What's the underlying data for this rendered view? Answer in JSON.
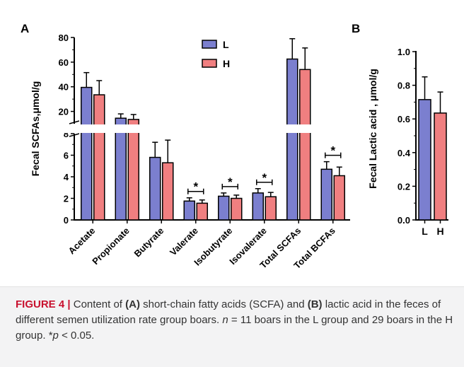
{
  "figure": {
    "panel_a_letter": "A",
    "panel_b_letter": "B",
    "caption": {
      "label": "FIGURE 4",
      "separator": "|",
      "t1": "Content of",
      "a_ref": "(A)",
      "t2": "short-chain fatty acids (SCFA) and",
      "b_ref": "(B)",
      "t3": "lactic acid in the feces of different semen utilization rate group boars.",
      "n_sym": "n",
      "t4": "= 11 boars in the L group and 29 boars in the H group. *",
      "p_sym": "p",
      "t5": "< 0.05."
    }
  },
  "chart_data": [
    {
      "type": "bar",
      "panel": "A",
      "ylabel": "Fecal SCFAs,μmol/g",
      "categories": [
        "Acetate",
        "Propionate",
        "Butyrate",
        "Valerate",
        "Isobutyrate",
        "Isovalerate",
        "Total SCFAs",
        "Total BCFAs"
      ],
      "series": [
        {
          "name": "L",
          "color": "#7b7fcf",
          "values": [
            39.5,
            14.5,
            5.8,
            1.75,
            2.2,
            2.5,
            62.5,
            4.7
          ],
          "errors": [
            12,
            3.5,
            1.4,
            0.3,
            0.3,
            0.4,
            16.5,
            0.7
          ]
        },
        {
          "name": "H",
          "color": "#f07f80",
          "values": [
            33.5,
            13.5,
            5.3,
            1.55,
            2.0,
            2.15,
            54.0,
            4.1
          ],
          "errors": [
            11.5,
            4.0,
            2.1,
            0.3,
            0.3,
            0.4,
            17.5,
            0.8
          ]
        }
      ],
      "y_lower": {
        "ylim": [
          0,
          8
        ],
        "ticks": [
          0,
          2,
          4,
          6,
          8
        ]
      },
      "y_upper": {
        "ylim": [
          10,
          80
        ],
        "ticks": [
          20,
          40,
          60,
          80
        ]
      },
      "axis_break": "y between 8 and 10",
      "significance": [
        {
          "category": "Valerate",
          "label": "*"
        },
        {
          "category": "Isobutyrate",
          "label": "*"
        },
        {
          "category": "Isovalerate",
          "label": "*"
        },
        {
          "category": "Total BCFAs",
          "label": "*"
        }
      ],
      "legend": {
        "placement": "top-center",
        "entries": [
          "L",
          "H"
        ]
      }
    },
    {
      "type": "bar",
      "panel": "B",
      "ylabel": "Fecal Lactic acid , μmol/g",
      "categories": [
        "L",
        "H"
      ],
      "values": [
        0.715,
        0.635
      ],
      "errors": [
        0.135,
        0.125
      ],
      "colors": [
        "#7b7fcf",
        "#f07f80"
      ],
      "ylim": [
        0,
        1.0
      ],
      "ticks": [
        "0.0",
        "0.2",
        "0.4",
        "0.6",
        "0.8",
        "1.0"
      ]
    }
  ]
}
